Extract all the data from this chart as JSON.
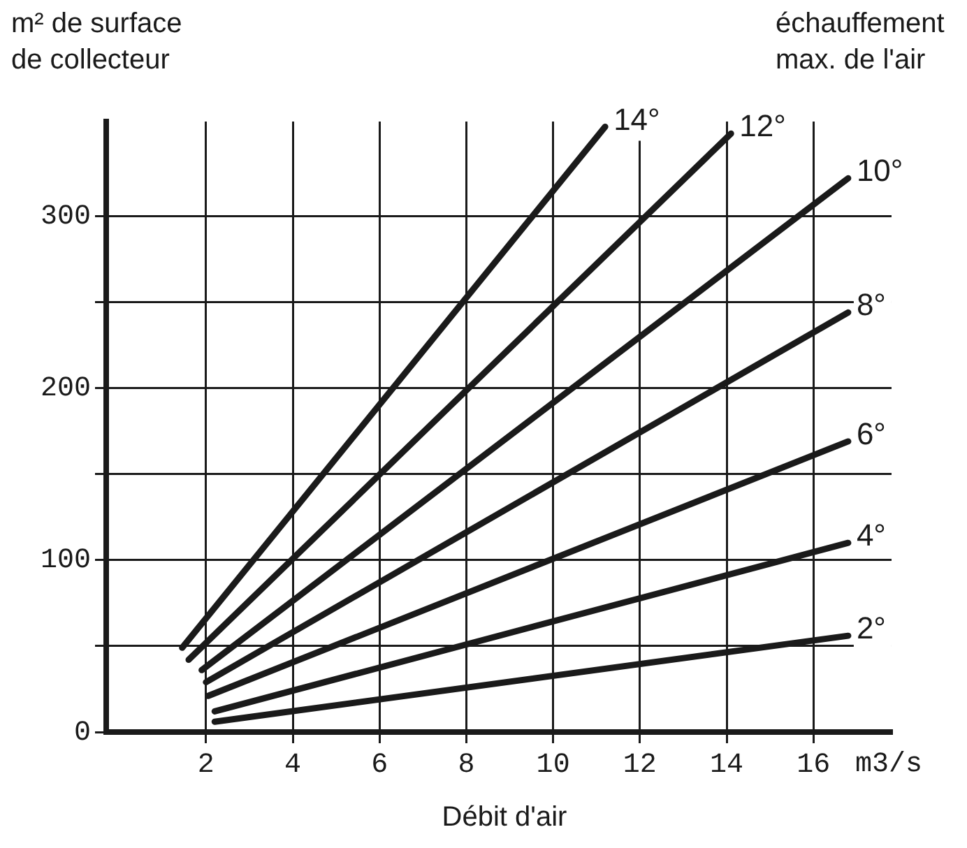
{
  "chart_data": {
    "type": "line",
    "ylabel": "m² de surface\nde collecteur",
    "legend_title": "échauffement\nmax. de l'air",
    "xlabel": "Débit d'air",
    "annotations": [
      "m3/s"
    ],
    "xlim": [
      -0.3,
      17.8
    ],
    "xticks": [
      2,
      4,
      6,
      8,
      10,
      12,
      14,
      16
    ],
    "ylim": [
      0,
      355
    ],
    "yticks": [
      0,
      {
        "value": 50,
        "label": null
      },
      100,
      {
        "value": 150,
        "label": null
      },
      200,
      {
        "value": 250,
        "label": null
      },
      300
    ],
    "grid": true,
    "marker": "none",
    "series": [
      {
        "name": "14°",
        "color": "#1a1a1a",
        "x": [
          1.45,
          11.2
        ],
        "values": [
          49,
          352
        ]
      },
      {
        "name": "12°",
        "color": "#1a1a1a",
        "x": [
          1.6,
          14.1
        ],
        "values": [
          42,
          348
        ]
      },
      {
        "name": "10°",
        "color": "#1a1a1a",
        "x": [
          1.9,
          16.8
        ],
        "values": [
          36,
          322
        ]
      },
      {
        "name": "8°",
        "color": "#1a1a1a",
        "x": [
          2.0,
          16.8
        ],
        "values": [
          29,
          244
        ]
      },
      {
        "name": "6°",
        "color": "#1a1a1a",
        "x": [
          2.05,
          16.8
        ],
        "values": [
          21,
          169
        ]
      },
      {
        "name": "4°",
        "color": "#1a1a1a",
        "x": [
          2.2,
          16.8
        ],
        "values": [
          12,
          110
        ]
      },
      {
        "name": "2°",
        "color": "#1a1a1a",
        "x": [
          2.2,
          16.8
        ],
        "values": [
          6,
          56
        ]
      }
    ]
  }
}
